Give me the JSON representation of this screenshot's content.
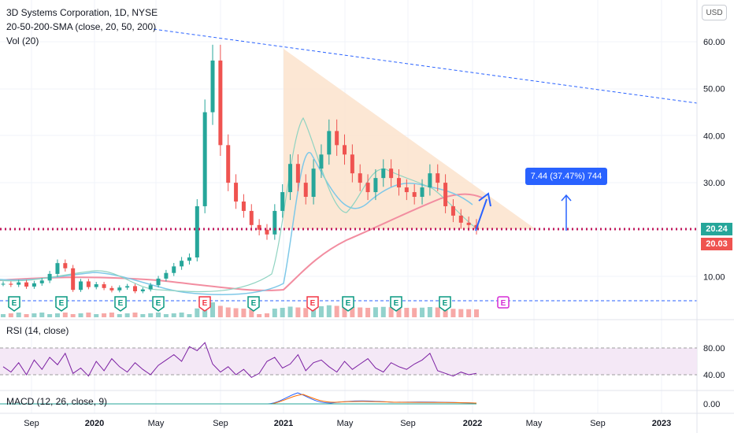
{
  "legend": {
    "symbol": "3D Systems Corporation, 1D, NYSE",
    "sma": "20-50-200-SMA (close, 20, 50, 200)",
    "vol": "Vol (20)",
    "rsi": "RSI (14, close)",
    "macd": "MACD (12, 26, close, 9)"
  },
  "currency": "USD",
  "price_tags": {
    "upper": "20.24",
    "lower": "20.03"
  },
  "measure_label": "7.44 (37.47%) 744",
  "colors": {
    "candle_up": "#26a69a",
    "candle_down": "#ef5350",
    "sma20": "#8fd3c1",
    "sma50": "#7ec8e8",
    "sma200": "#f28da0",
    "triangle": "#fbe3cc",
    "dots": "#c2185b",
    "arrow": "#2962ff",
    "rsi_line": "#7b1fa2",
    "rsi_band": "#f3e5f5",
    "earnings_green": "#089981",
    "earnings_red": "#f23645",
    "earnings_future": "#d52bd5"
  },
  "chart_data": [
    {
      "type": "line",
      "title": "3D Systems Corporation, 1D, NYSE",
      "x_ticks": [
        "Sep",
        "2020",
        "May",
        "Sep",
        "2021",
        "May",
        "Sep",
        "2022",
        "May",
        "Sep",
        "2023"
      ],
      "y_ticks": [
        "60.00",
        "50.00",
        "40.00",
        "30.00",
        "20.00",
        "10.00"
      ],
      "ylim": [
        4,
        64
      ],
      "series": [
        {
          "values": [
            8.5,
            8.3,
            8.8,
            7.9,
            8.6,
            9.2,
            10.6,
            12.9,
            11.8,
            7.2,
            9.0,
            7.8,
            8.4,
            7.6,
            7.1,
            7.7,
            8.0,
            6.9,
            7.3,
            8.2,
            9.6,
            10.8,
            12.2,
            13.4,
            14.1,
            25.0,
            45.0,
            56.0,
            38.0,
            30.0,
            26.0,
            24.0,
            21.0,
            20.0,
            19.0,
            24.0,
            28.0,
            34.0,
            30.0,
            27.0,
            33.0,
            36.0,
            41.0,
            38.0,
            36.0,
            32.0,
            30.0,
            28.0,
            31.0,
            33.0,
            31.0,
            29.0,
            28.0,
            27.0,
            29.0,
            32.0,
            30.0,
            25.0,
            23.0,
            21.5,
            21.0,
            20.2
          ]
        }
      ]
    },
    {
      "type": "line",
      "title": "RSI (14, close)",
      "y_ticks": [
        "80.00",
        "40.00"
      ],
      "ylim": [
        20,
        100
      ],
      "values": [
        52,
        44,
        58,
        40,
        62,
        48,
        66,
        55,
        72,
        42,
        50,
        38,
        60,
        46,
        64,
        52,
        44,
        58,
        48,
        40,
        54,
        62,
        70,
        60,
        82,
        76,
        88,
        56,
        44,
        52,
        40,
        48,
        36,
        42,
        60,
        66,
        50,
        56,
        70,
        46,
        58,
        62,
        52,
        44,
        60,
        48,
        56,
        64,
        50,
        44,
        58,
        52,
        48,
        56,
        62,
        72,
        46,
        42,
        38,
        44,
        40,
        42
      ]
    },
    {
      "type": "line",
      "title": "MACD (12, 26, close, 9)",
      "y_ticks": [
        "0.00"
      ]
    }
  ]
}
